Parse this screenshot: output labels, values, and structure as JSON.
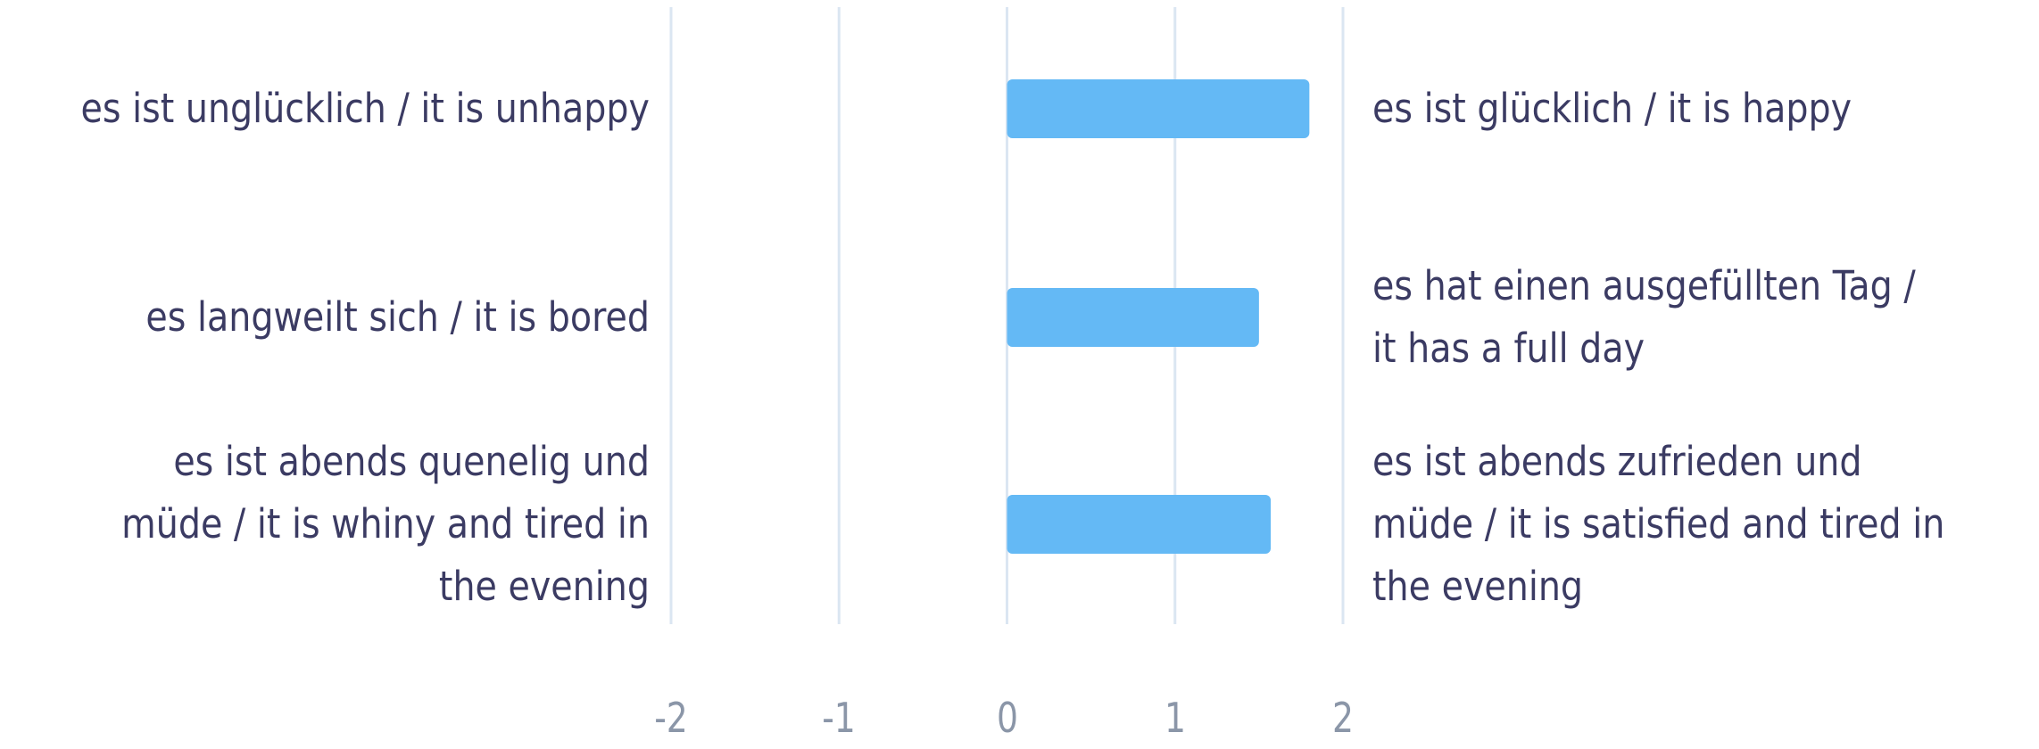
{
  "chart_data": {
    "type": "bar",
    "orientation": "horizontal",
    "xlim": [
      -2,
      2
    ],
    "x_ticks": [
      "-2",
      "-1",
      "0",
      "1",
      "2"
    ],
    "grid": true,
    "bar_color": "#64b9f5",
    "grid_color": "#dbe6f2",
    "text_color": "#3b3b63",
    "tick_color": "#8b96a8",
    "items": [
      {
        "left_label": "es ist unglücklich / it is unhappy",
        "right_label": "es ist glücklich / it is happy",
        "value": 1.8
      },
      {
        "left_label": "es langweilt sich / it is bored",
        "right_label": "es hat einen ausgefüllten Tag / it has a full day",
        "value": 1.5
      },
      {
        "left_label": "es ist abends quenelig und müde / it is whiny and tired in the evening",
        "right_label": "es ist abends zufrieden und müde / it is satisfied and tired in the evening",
        "value": 1.57
      }
    ]
  }
}
